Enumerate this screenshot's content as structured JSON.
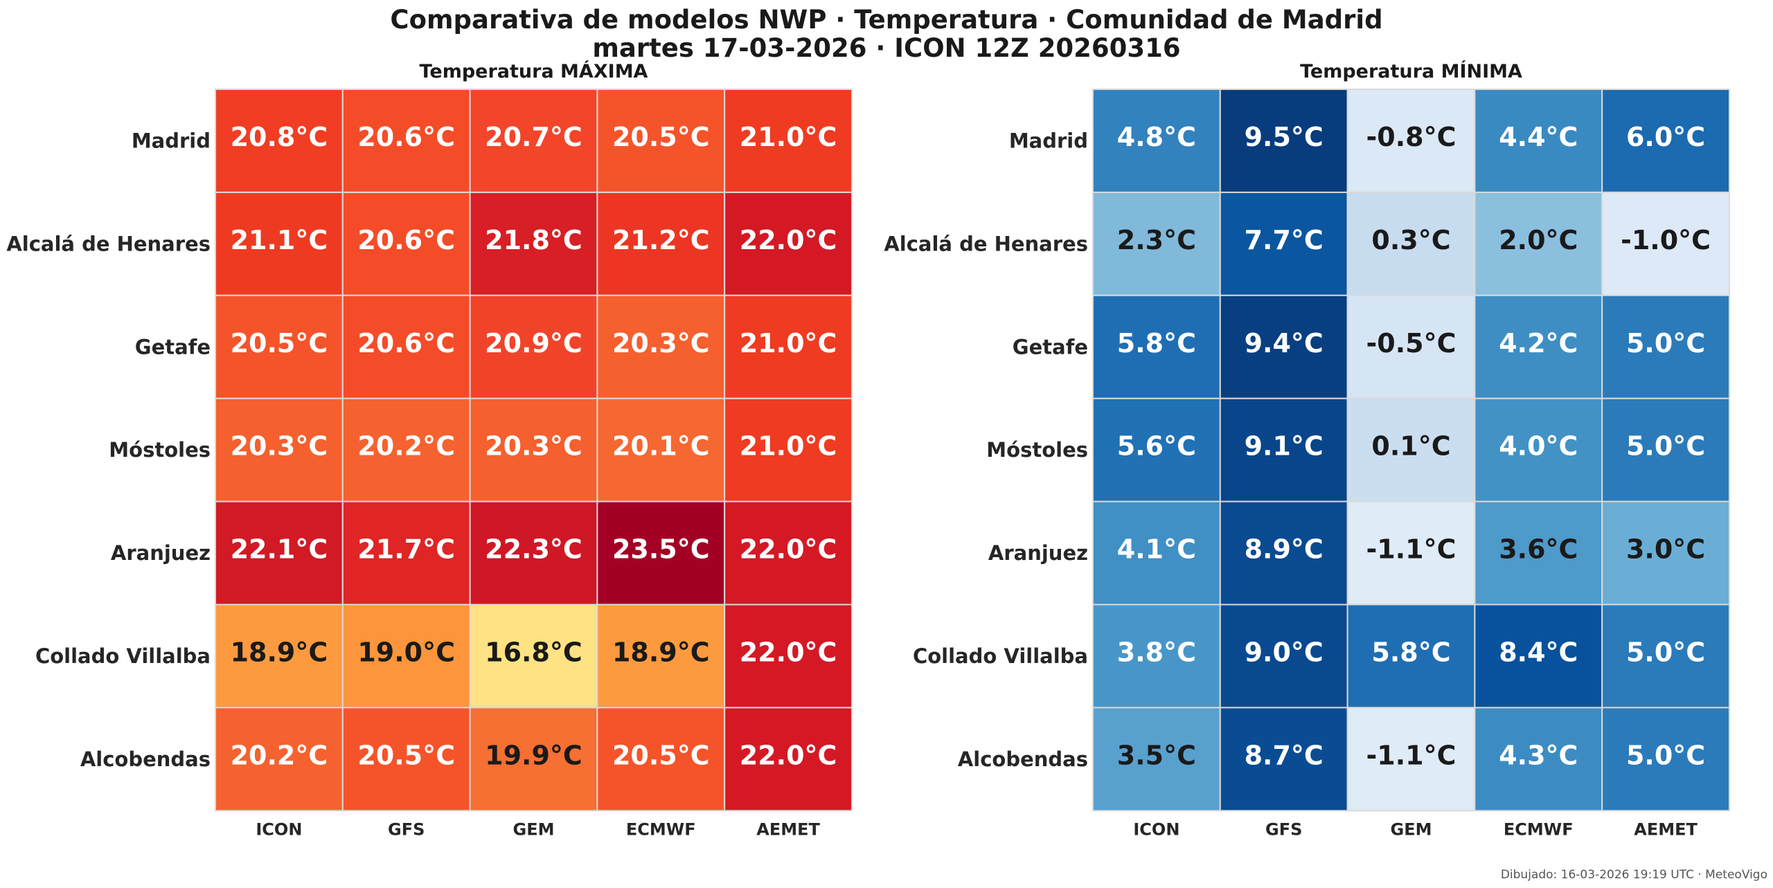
{
  "header": {
    "title": "Comparativa de modelos NWP · Temperatura · Comunidad de Madrid",
    "subtitle": "martes 17-03-2026  ·  ICON 12Z 20260316"
  },
  "footer": {
    "text": "Dibujado: 16-03-2026 19:19 UTC · MeteoVigo"
  },
  "chart_data": [
    {
      "type": "heatmap",
      "title": "Temperatura MÁXIMA",
      "colormap": "OrRd",
      "x": [
        "ICON",
        "GFS",
        "GEM",
        "ECMWF",
        "AEMET"
      ],
      "y": [
        "Madrid",
        "Alcalá de Henares",
        "Getafe",
        "Móstoles",
        "Aranjuez",
        "Collado Villalba",
        "Alcobendas"
      ],
      "values": [
        [
          20.8,
          20.6,
          20.7,
          20.5,
          21.0
        ],
        [
          21.1,
          20.6,
          21.8,
          21.2,
          22.0
        ],
        [
          20.5,
          20.6,
          20.9,
          20.3,
          21.0
        ],
        [
          20.3,
          20.2,
          20.3,
          20.1,
          21.0
        ],
        [
          22.1,
          21.7,
          22.3,
          23.5,
          22.0
        ],
        [
          18.9,
          19.0,
          16.8,
          18.9,
          22.0
        ],
        [
          20.2,
          20.5,
          19.9,
          20.5,
          22.0
        ]
      ],
      "cell_labels": [
        [
          "20.8°C",
          "20.6°C",
          "20.7°C",
          "20.5°C",
          "21.0°C"
        ],
        [
          "21.1°C",
          "20.6°C",
          "21.8°C",
          "21.2°C",
          "22.0°C"
        ],
        [
          "20.5°C",
          "20.6°C",
          "20.9°C",
          "20.3°C",
          "21.0°C"
        ],
        [
          "20.3°C",
          "20.2°C",
          "20.3°C",
          "20.1°C",
          "21.0°C"
        ],
        [
          "22.1°C",
          "21.7°C",
          "22.3°C",
          "23.5°C",
          "22.0°C"
        ],
        [
          "18.9°C",
          "19.0°C",
          "16.8°C",
          "18.9°C",
          "22.0°C"
        ],
        [
          "20.2°C",
          "20.5°C",
          "19.9°C",
          "20.5°C",
          "22.0°C"
        ]
      ],
      "cell_colors": [
        [
          "#f03d24",
          "#f44c28",
          "#f2452a",
          "#f5542b",
          "#ef3b22"
        ],
        [
          "#ef3a22",
          "#f44c28",
          "#d71f25",
          "#ec3623",
          "#d41925"
        ],
        [
          "#f5542b",
          "#f44c28",
          "#f1432a",
          "#f5602e",
          "#ef3b22"
        ],
        [
          "#f5602e",
          "#f5622f",
          "#f5602e",
          "#f66831",
          "#ef3b22"
        ],
        [
          "#d21a26",
          "#df2526",
          "#d01725",
          "#a40025",
          "#d41925"
        ],
        [
          "#fd9a3f",
          "#fd953c",
          "#fee283",
          "#fd9a3f",
          "#d41925"
        ],
        [
          "#f5622f",
          "#f5542b",
          "#f66f33",
          "#f5542b",
          "#d41925"
        ]
      ],
      "label_colors": [
        [
          "#ffffff",
          "#ffffff",
          "#ffffff",
          "#ffffff",
          "#ffffff"
        ],
        [
          "#ffffff",
          "#ffffff",
          "#ffffff",
          "#ffffff",
          "#ffffff"
        ],
        [
          "#ffffff",
          "#ffffff",
          "#ffffff",
          "#ffffff",
          "#ffffff"
        ],
        [
          "#ffffff",
          "#ffffff",
          "#ffffff",
          "#ffffff",
          "#ffffff"
        ],
        [
          "#ffffff",
          "#ffffff",
          "#ffffff",
          "#ffffff",
          "#ffffff"
        ],
        [
          "#1a1a1a",
          "#1a1a1a",
          "#1a1a1a",
          "#1a1a1a",
          "#ffffff"
        ],
        [
          "#ffffff",
          "#ffffff",
          "#1a1a1a",
          "#ffffff",
          "#ffffff"
        ]
      ]
    },
    {
      "type": "heatmap",
      "title": "Temperatura MÍNIMA",
      "colormap": "Blues",
      "x": [
        "ICON",
        "GFS",
        "GEM",
        "ECMWF",
        "AEMET"
      ],
      "y": [
        "Madrid",
        "Alcalá de Henares",
        "Getafe",
        "Móstoles",
        "Aranjuez",
        "Collado Villalba",
        "Alcobendas"
      ],
      "values": [
        [
          4.8,
          9.5,
          -0.8,
          4.4,
          6.0
        ],
        [
          2.3,
          7.7,
          0.3,
          2.0,
          -1.0
        ],
        [
          5.8,
          9.4,
          -0.5,
          4.2,
          5.0
        ],
        [
          5.6,
          9.1,
          0.1,
          4.0,
          5.0
        ],
        [
          4.1,
          8.9,
          -1.1,
          3.6,
          3.0
        ],
        [
          3.8,
          9.0,
          5.8,
          8.4,
          5.0
        ],
        [
          3.5,
          8.7,
          -1.1,
          4.3,
          5.0
        ]
      ],
      "cell_labels": [
        [
          "4.8°C",
          "9.5°C",
          "-0.8°C",
          "4.4°C",
          "6.0°C"
        ],
        [
          "2.3°C",
          "7.7°C",
          "0.3°C",
          "2.0°C",
          "-1.0°C"
        ],
        [
          "5.8°C",
          "9.4°C",
          "-0.5°C",
          "4.2°C",
          "5.0°C"
        ],
        [
          "5.6°C",
          "9.1°C",
          "0.1°C",
          "4.0°C",
          "5.0°C"
        ],
        [
          "4.1°C",
          "8.9°C",
          "-1.1°C",
          "3.6°C",
          "3.0°C"
        ],
        [
          "3.8°C",
          "9.0°C",
          "5.8°C",
          "8.4°C",
          "5.0°C"
        ],
        [
          "3.5°C",
          "8.7°C",
          "-1.1°C",
          "4.3°C",
          "5.0°C"
        ]
      ],
      "cell_colors": [
        [
          "#3282be",
          "#083c7d",
          "#dbe8f5",
          "#3a8ac2",
          "#1c6aaf"
        ],
        [
          "#81b9db",
          "#0b56a0",
          "#c8dcef",
          "#8bbfde",
          "#dde9f6"
        ],
        [
          "#1f6eb3",
          "#083f80",
          "#d6e5f4",
          "#3e8ec4",
          "#2b7bba"
        ],
        [
          "#2171b5",
          "#08458a",
          "#cadef0",
          "#4292c6",
          "#2b7bba"
        ],
        [
          "#4090c5",
          "#0a4a90",
          "#dfebf7",
          "#4e9acb",
          "#6aaed6"
        ],
        [
          "#4896c8",
          "#094990",
          "#1f6eb3",
          "#08519c",
          "#2b7bba"
        ],
        [
          "#58a1cf",
          "#0a4c93",
          "#dfebf7",
          "#3c8cc3",
          "#2b7bba"
        ]
      ],
      "label_colors": [
        [
          "#ffffff",
          "#ffffff",
          "#1a1a1a",
          "#ffffff",
          "#ffffff"
        ],
        [
          "#1a1a1a",
          "#ffffff",
          "#1a1a1a",
          "#1a1a1a",
          "#1a1a1a"
        ],
        [
          "#ffffff",
          "#ffffff",
          "#1a1a1a",
          "#ffffff",
          "#ffffff"
        ],
        [
          "#ffffff",
          "#ffffff",
          "#1a1a1a",
          "#ffffff",
          "#ffffff"
        ],
        [
          "#ffffff",
          "#ffffff",
          "#1a1a1a",
          "#1a1a1a",
          "#1a1a1a"
        ],
        [
          "#ffffff",
          "#ffffff",
          "#ffffff",
          "#ffffff",
          "#ffffff"
        ],
        [
          "#1a1a1a",
          "#ffffff",
          "#1a1a1a",
          "#ffffff",
          "#ffffff"
        ]
      ]
    }
  ]
}
